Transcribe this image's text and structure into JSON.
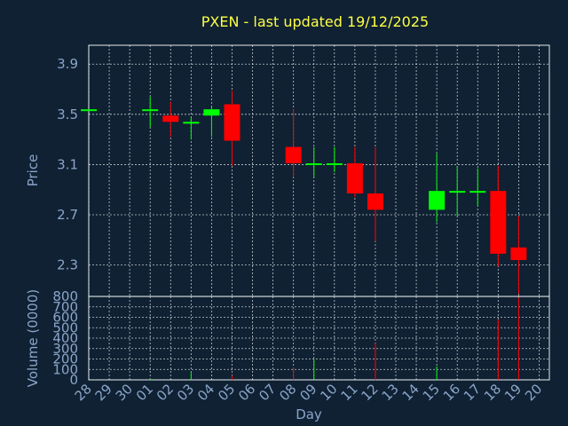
{
  "chart_data": {
    "type": "candlestick",
    "title": "PXEN - last updated 19/12/2025",
    "xlabel": "Day",
    "ylabel_price": "Price",
    "ylabel_volume": "Volume (0000)",
    "price_ylim": [
      2.05,
      4.05
    ],
    "price_ticks": [
      "2.3",
      "2.7",
      "3.1",
      "3.5",
      "3.9"
    ],
    "volume_ylim": [
      0,
      800
    ],
    "volume_ticks": [
      "0",
      "100",
      "200",
      "300",
      "400",
      "500",
      "600",
      "700",
      "800"
    ],
    "x_ticks": [
      "28",
      "29",
      "30",
      "01",
      "02",
      "03",
      "04",
      "05",
      "06",
      "07",
      "08",
      "09",
      "10",
      "11",
      "12",
      "13",
      "14",
      "15",
      "16",
      "17",
      "18",
      "19",
      "20"
    ],
    "grid": true,
    "colors": {
      "up": "#00ff00",
      "down": "#ff0000",
      "title": "#ffff44",
      "axis_text": "#8ba5c9",
      "background": "#0f2133"
    },
    "candles": [
      {
        "day": "28",
        "open": 3.54,
        "high": 3.54,
        "low": 3.54,
        "close": 3.54,
        "volume": 0
      },
      {
        "day": "01",
        "open": 3.54,
        "high": 3.64,
        "low": 3.4,
        "close": 3.54,
        "volume": 10
      },
      {
        "day": "02",
        "open": 3.49,
        "high": 3.6,
        "low": 3.32,
        "close": 3.44,
        "volume": 0
      },
      {
        "day": "03",
        "open": 3.44,
        "high": 3.48,
        "low": 3.3,
        "close": 3.44,
        "volume": 80
      },
      {
        "day": "04",
        "open": 3.49,
        "high": 3.56,
        "low": 3.32,
        "close": 3.54,
        "volume": 0
      },
      {
        "day": "05",
        "open": 3.58,
        "high": 3.69,
        "low": 3.09,
        "close": 3.29,
        "volume": 40
      },
      {
        "day": "08",
        "open": 3.24,
        "high": 3.54,
        "low": 3.0,
        "close": 3.11,
        "volume": 120
      },
      {
        "day": "09",
        "open": 3.11,
        "high": 3.24,
        "low": 3.0,
        "close": 3.11,
        "volume": 200
      },
      {
        "day": "10",
        "open": 3.11,
        "high": 3.24,
        "low": 3.04,
        "close": 3.11,
        "volume": 0
      },
      {
        "day": "11",
        "open": 3.11,
        "high": 3.24,
        "low": 2.84,
        "close": 2.87,
        "volume": 0
      },
      {
        "day": "12",
        "open": 2.87,
        "high": 3.24,
        "low": 2.49,
        "close": 2.74,
        "volume": 350
      },
      {
        "day": "15",
        "open": 2.74,
        "high": 3.19,
        "low": 2.64,
        "close": 2.89,
        "volume": 130
      },
      {
        "day": "16",
        "open": 2.89,
        "high": 3.09,
        "low": 2.69,
        "close": 2.89,
        "volume": 0
      },
      {
        "day": "17",
        "open": 2.89,
        "high": 3.07,
        "low": 2.77,
        "close": 2.89,
        "volume": 0
      },
      {
        "day": "18",
        "open": 2.89,
        "high": 3.09,
        "low": 2.29,
        "close": 2.39,
        "volume": 580
      },
      {
        "day": "19",
        "open": 2.44,
        "high": 2.69,
        "low": 2.07,
        "close": 2.34,
        "volume": 790
      }
    ]
  }
}
